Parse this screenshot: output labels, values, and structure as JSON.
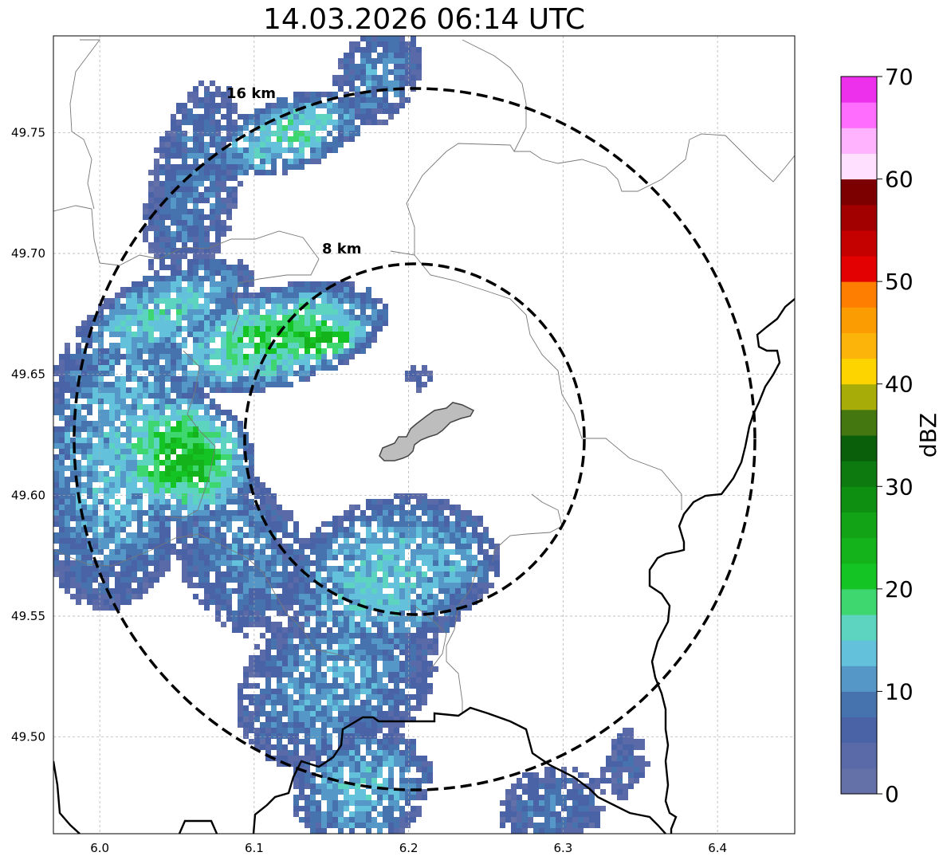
{
  "title": "14.03.2026 06:14 UTC",
  "map": {
    "lon_range": [
      5.97,
      6.45
    ],
    "lat_range": [
      49.46,
      49.79
    ],
    "x_ticks": [
      "6.0",
      "6.1",
      "6.2",
      "6.3",
      "6.4"
    ],
    "x_tick_values": [
      6.0,
      6.1,
      6.2,
      6.3,
      6.4
    ],
    "y_ticks": [
      "49.75",
      "49.70",
      "49.65",
      "49.60",
      "49.55",
      "49.50"
    ],
    "y_tick_values": [
      49.75,
      49.7,
      49.65,
      49.6,
      49.55,
      49.5
    ],
    "grid": true,
    "radar_center": {
      "lon": 6.205,
      "lat": 49.623
    },
    "range_rings": [
      {
        "label": "8 km",
        "radius_km": 8
      },
      {
        "label": "16 km",
        "radius_km": 16
      }
    ],
    "city_area": "Luxembourg city outline"
  },
  "colorbar": {
    "unit_label": "dBZ",
    "tick_labels": [
      "0",
      "10",
      "20",
      "30",
      "40",
      "50",
      "60",
      "70"
    ],
    "min": 0,
    "max": 70,
    "step": 2.5,
    "colors": [
      "#6371a8",
      "#5a6aa8",
      "#4a63a6",
      "#4673ae",
      "#5597c6",
      "#64c1dc",
      "#5cd4c0",
      "#3ed66f",
      "#13c424",
      "#14b31c",
      "#13a316",
      "#0f8f12",
      "#0c7a0e",
      "#0a5f0b",
      "#457711",
      "#a8ac08",
      "#fed400",
      "#fcb40b",
      "#fc9c03",
      "#fd7e00",
      "#e30102",
      "#c50100",
      "#a20000",
      "#7c0000",
      "#ffe1ff",
      "#ffb3ff",
      "#fe6dfe",
      "#ec30ec"
    ]
  }
}
